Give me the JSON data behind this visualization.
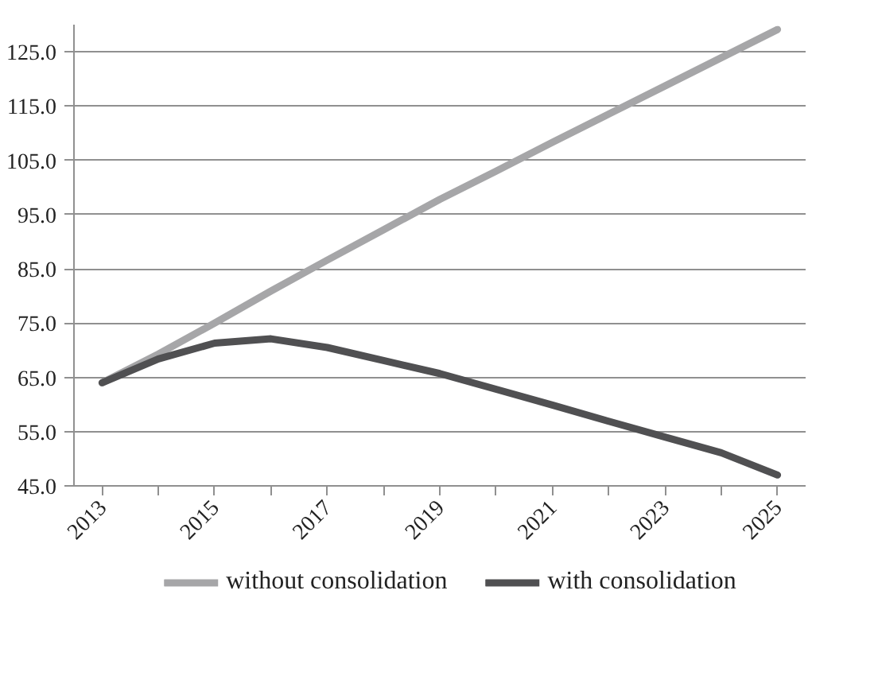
{
  "chart_data": {
    "type": "line",
    "categories": [
      "2013",
      null,
      "2015",
      null,
      "2017",
      null,
      "2019",
      null,
      "2021",
      null,
      "2023",
      null,
      "2025"
    ],
    "series": [
      {
        "name": "without consolidation",
        "color": "#a6a6a8",
        "values": [
          64.0,
          69.3,
          75.0,
          80.9,
          86.6,
          92.2,
          97.8,
          103.0,
          108.3,
          113.5,
          118.7,
          123.9,
          129.1
        ]
      },
      {
        "name": "with consolidation",
        "color": "#505052",
        "values": [
          64.0,
          68.4,
          71.3,
          72.1,
          70.5,
          68.1,
          65.7,
          62.8,
          59.9,
          56.9,
          54.0,
          51.1,
          47.0
        ]
      }
    ],
    "ylim": [
      45,
      130
    ],
    "yticks": [
      {
        "value": 45,
        "label": "45.0"
      },
      {
        "value": 55,
        "label": "55.0"
      },
      {
        "value": 65,
        "label": "65.0"
      },
      {
        "value": 75,
        "label": "75.0"
      },
      {
        "value": 85,
        "label": "85.0"
      },
      {
        "value": 95,
        "label": "95.0"
      },
      {
        "value": 105,
        "label": "105.0"
      },
      {
        "value": 115,
        "label": "115.0"
      },
      {
        "value": 125,
        "label": "125.0"
      }
    ],
    "grid": "y",
    "legend": "bottom",
    "marker": "none",
    "line_style": "solid"
  }
}
